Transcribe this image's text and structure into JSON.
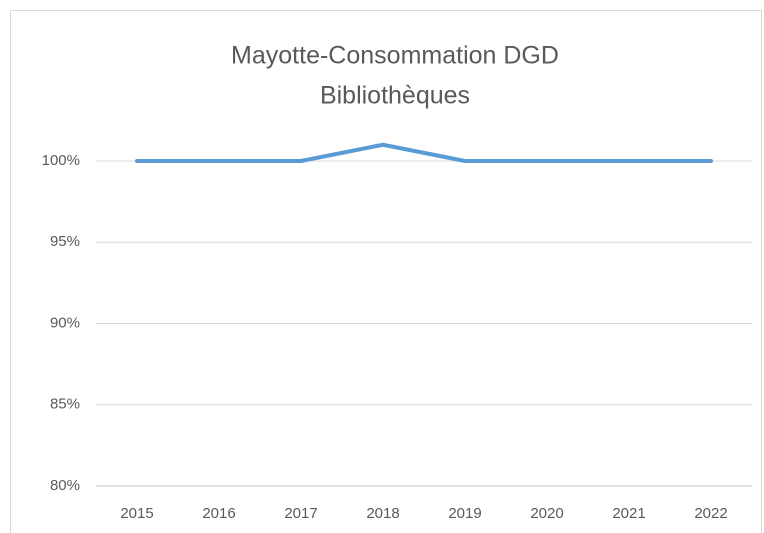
{
  "chart_data": {
    "type": "line",
    "title": [
      "Mayotte-Consommation DGD",
      "Bibliothèques"
    ],
    "categories": [
      "2015",
      "2016",
      "2017",
      "2018",
      "2019",
      "2020",
      "2021",
      "2022"
    ],
    "series": [
      {
        "name": "Consommation DGD",
        "color": "#5b9bd5",
        "values": [
          100,
          100,
          100,
          101,
          100,
          100,
          100,
          100
        ]
      }
    ],
    "ylim": [
      80,
      102
    ],
    "yticks": [
      {
        "value": 80,
        "label": "80%"
      },
      {
        "value": 85,
        "label": "85%"
      },
      {
        "value": 90,
        "label": "90%"
      },
      {
        "value": 95,
        "label": "95%"
      },
      {
        "value": 100,
        "label": "100%"
      }
    ],
    "grid": true,
    "legend": false
  }
}
